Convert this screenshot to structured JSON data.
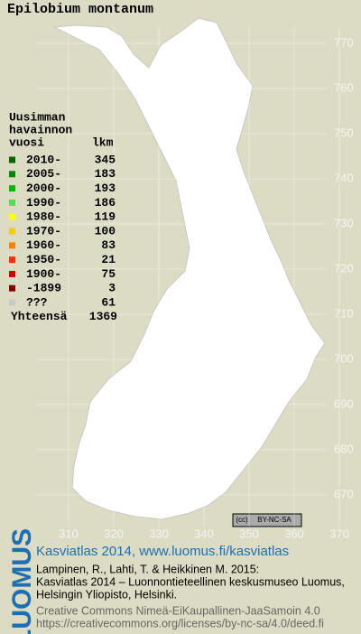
{
  "header": {
    "title": "Epilobium montanum"
  },
  "legend": {
    "heading": [
      "Uusimman",
      "havainnon",
      "vuosi"
    ],
    "count_heading": "lkm",
    "rows": [
      {
        "label": "2010-",
        "count": 345,
        "color": "#006400"
      },
      {
        "label": "2005-",
        "count": 183,
        "color": "#008a00"
      },
      {
        "label": "2000-",
        "count": 193,
        "color": "#00b800"
      },
      {
        "label": "1990-",
        "count": 186,
        "color": "#50e050"
      },
      {
        "label": "1980-",
        "count": 119,
        "color": "#ffff00"
      },
      {
        "label": "1970-",
        "count": 100,
        "color": "#ffc800"
      },
      {
        "label": "1960-",
        "count": 83,
        "color": "#ff8000"
      },
      {
        "label": "1950-",
        "count": 21,
        "color": "#ff3000"
      },
      {
        "label": "1900-",
        "count": 75,
        "color": "#d00000"
      },
      {
        "label": "-1899",
        "count": 3,
        "color": "#800000"
      },
      {
        "label": "???",
        "count": 61,
        "color": "#c8c8c8"
      }
    ],
    "total_label": "Yhteensä",
    "total": 1369
  },
  "map": {
    "y_ticks": [
      770,
      760,
      750,
      740,
      730,
      720,
      710,
      700,
      690,
      680,
      670
    ],
    "x_ticks": [
      310,
      320,
      330,
      340,
      350,
      360,
      370
    ]
  },
  "badge": "BY-NC-SA",
  "footer": {
    "logo": "LUOMUS",
    "link": "Kasviatlas 2014, www.luomus.fi/kasviatlas",
    "citation": [
      "Lampinen, R., Lahti, T. & Heikkinen M. 2015:",
      "Kasviatlas 2014 – Luonnontieteellinen keskusmuseo Luomus,",
      "Helsingin Yliopisto, Helsinki."
    ],
    "license": [
      "Creative Commons Nimeä-EiKaupallinen-JaaSamoin 4.0",
      "https://creativecommons.org/licenses/by-nc-sa/4.0/deed.fi"
    ]
  }
}
